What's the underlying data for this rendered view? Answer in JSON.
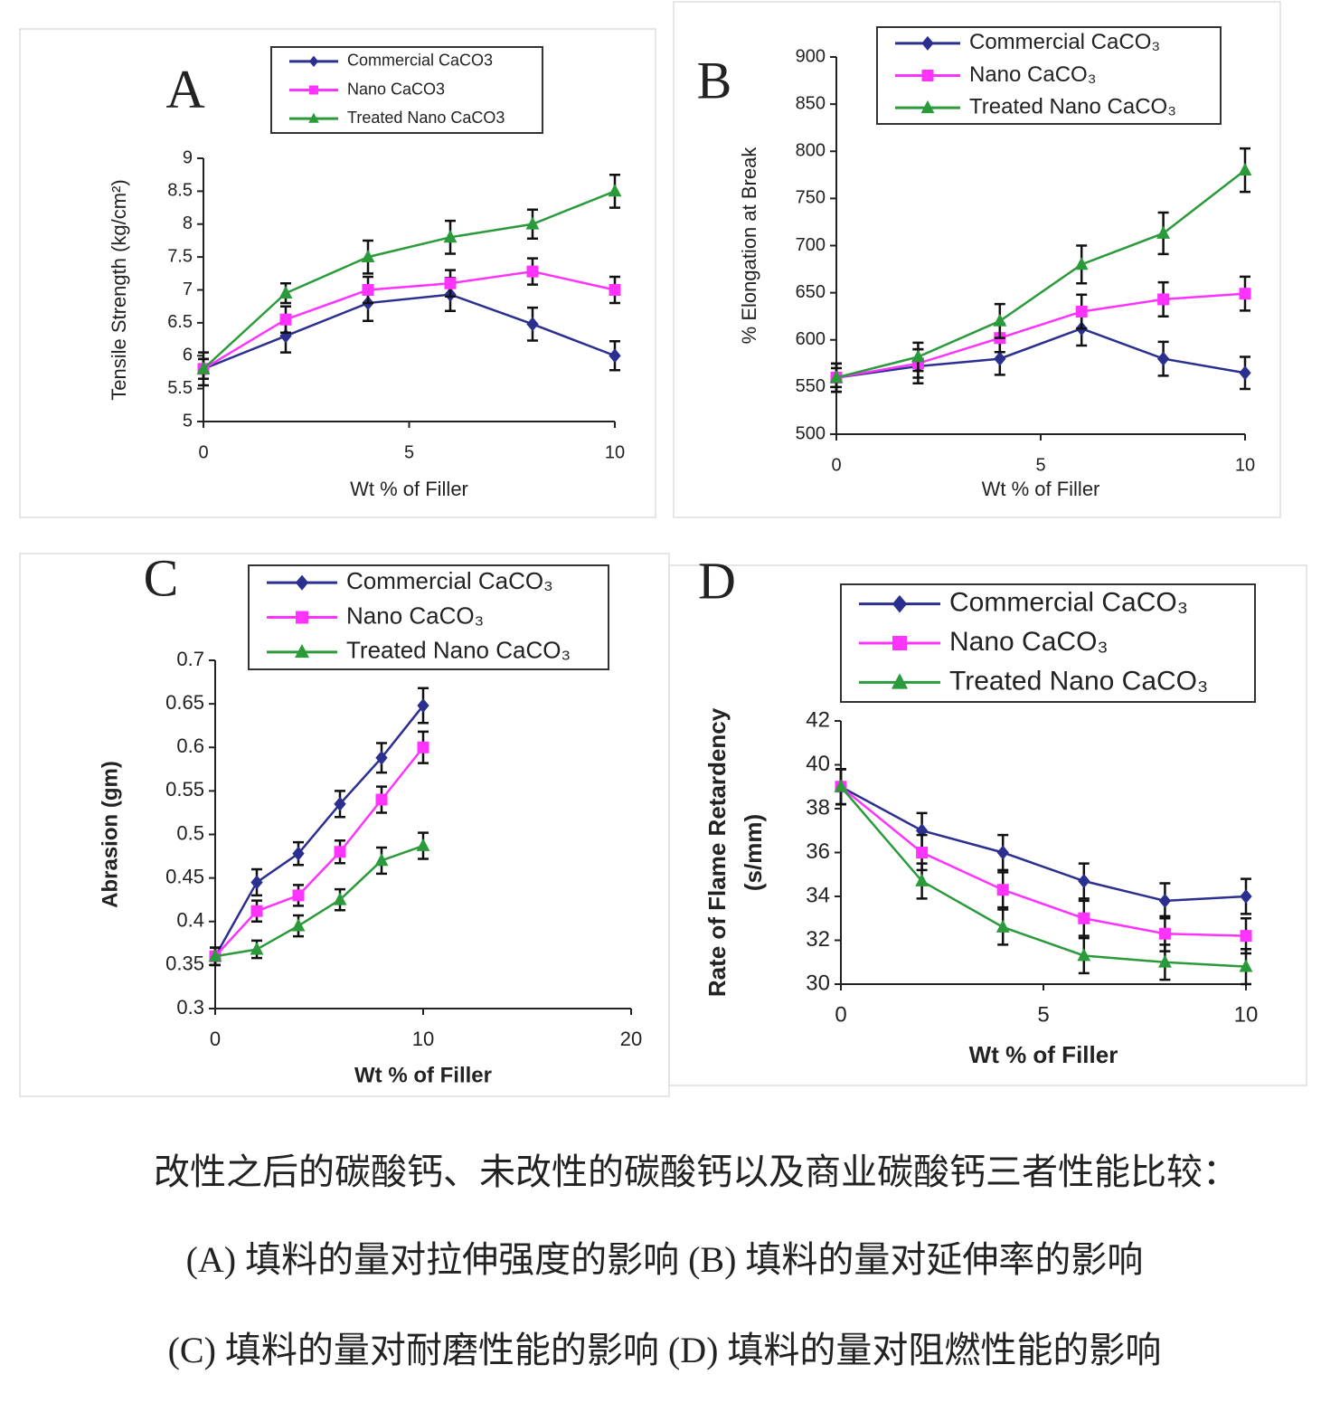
{
  "chart_data": [
    {
      "type": "line",
      "title": "A",
      "x_label": "Wt % of Filler",
      "y_label": "Tensile Strength (kg/cm²)",
      "x": [
        0,
        2,
        4,
        6,
        8,
        10
      ],
      "xlim": [
        0,
        10
      ],
      "xticks": [
        0,
        5,
        10
      ],
      "ylim": [
        5,
        9
      ],
      "yticks": [
        5,
        5.5,
        6,
        6.5,
        7,
        7.5,
        8,
        8.5,
        9
      ],
      "series": [
        {
          "name": "Commercial CaCO3",
          "color": "#2b2f8f",
          "marker": "diamond",
          "values": [
            5.8,
            6.3,
            6.8,
            6.93,
            6.48,
            6.0
          ],
          "errors": [
            0.25,
            0.25,
            0.27,
            0.25,
            0.25,
            0.22
          ]
        },
        {
          "name": "Nano CaCO3",
          "color": "#ff33ff",
          "marker": "square",
          "values": [
            5.8,
            6.55,
            7.0,
            7.1,
            7.28,
            7.0
          ],
          "errors": [
            0.15,
            0.2,
            0.2,
            0.2,
            0.2,
            0.2
          ]
        },
        {
          "name": "Treated Nano CaCO3",
          "color": "#2a9a3a",
          "marker": "triangle",
          "values": [
            5.8,
            6.95,
            7.5,
            7.8,
            8.0,
            8.5
          ],
          "errors": [
            0.15,
            0.15,
            0.25,
            0.25,
            0.22,
            0.25
          ]
        }
      ]
    },
    {
      "type": "line",
      "title": "B",
      "x_label": "Wt % of Filler",
      "y_label": "% Elongation at Break",
      "x": [
        0,
        2,
        4,
        6,
        8,
        10
      ],
      "xlim": [
        0,
        10
      ],
      "xticks": [
        0,
        5,
        10
      ],
      "ylim": [
        500,
        900
      ],
      "yticks": [
        500,
        550,
        600,
        650,
        700,
        750,
        800,
        850,
        900
      ],
      "series": [
        {
          "name": "Commercial CaCO₃",
          "color": "#2b2f8f",
          "marker": "diamond",
          "values": [
            560,
            572,
            580,
            612,
            580,
            565
          ],
          "errors": [
            15,
            18,
            17,
            18,
            18,
            17
          ]
        },
        {
          "name": "Nano CaCO₃",
          "color": "#ff33ff",
          "marker": "square",
          "values": [
            560,
            575,
            602,
            630,
            643,
            649
          ],
          "errors": [
            10,
            15,
            15,
            18,
            18,
            18
          ]
        },
        {
          "name": "Treated Nano CaCO₃",
          "color": "#2a9a3a",
          "marker": "triangle",
          "values": [
            560,
            582,
            620,
            680,
            713,
            780
          ],
          "errors": [
            15,
            15,
            18,
            20,
            22,
            23
          ]
        }
      ]
    },
    {
      "type": "line",
      "title": "C",
      "x_label": "Wt % of Filler",
      "y_label": "Abrasion (gm)",
      "x": [
        0,
        2,
        4,
        6,
        8,
        10
      ],
      "xlim": [
        0,
        20
      ],
      "xticks": [
        0,
        10,
        20
      ],
      "ylim": [
        0.3,
        0.7
      ],
      "yticks": [
        0.3,
        0.35,
        0.4,
        0.45,
        0.5,
        0.55,
        0.6,
        0.65,
        0.7
      ],
      "series": [
        {
          "name": "Commercial CaCO₃",
          "color": "#2b2f8f",
          "marker": "diamond",
          "values": [
            0.36,
            0.445,
            0.478,
            0.535,
            0.588,
            0.648
          ],
          "errors": [
            0.01,
            0.015,
            0.013,
            0.015,
            0.017,
            0.02
          ]
        },
        {
          "name": "Nano CaCO₃",
          "color": "#ff33ff",
          "marker": "square",
          "values": [
            0.36,
            0.412,
            0.43,
            0.48,
            0.54,
            0.6
          ],
          "errors": [
            0.01,
            0.012,
            0.012,
            0.013,
            0.015,
            0.018
          ]
        },
        {
          "name": "Treated Nano CaCO₃",
          "color": "#2a9a3a",
          "marker": "triangle",
          "values": [
            0.36,
            0.368,
            0.395,
            0.425,
            0.47,
            0.487
          ],
          "errors": [
            0.01,
            0.01,
            0.012,
            0.012,
            0.015,
            0.015
          ]
        }
      ]
    },
    {
      "type": "line",
      "title": "D",
      "x_label": "Wt % of Filler",
      "y_label": [
        "Rate of Flame Retardency",
        "(s/mm)"
      ],
      "x": [
        0,
        2,
        4,
        6,
        8,
        10
      ],
      "xlim": [
        0,
        10
      ],
      "xticks": [
        0,
        5,
        10
      ],
      "ylim": [
        30,
        42
      ],
      "yticks": [
        30,
        32,
        34,
        36,
        38,
        40,
        42
      ],
      "series": [
        {
          "name": "Commercial CaCO₃",
          "color": "#2b2f8f",
          "marker": "diamond",
          "values": [
            39,
            37,
            36,
            34.7,
            33.8,
            34
          ],
          "errors": [
            0.8,
            0.8,
            0.8,
            0.8,
            0.8,
            0.8
          ]
        },
        {
          "name": "Nano CaCO₃",
          "color": "#ff33ff",
          "marker": "square",
          "values": [
            39,
            36,
            34.3,
            33,
            32.3,
            32.2
          ],
          "errors": [
            0.8,
            0.8,
            0.8,
            0.8,
            0.8,
            0.8
          ]
        },
        {
          "name": "Treated Nano CaCO₃",
          "color": "#2a9a3a",
          "marker": "triangle",
          "values": [
            39,
            34.7,
            32.6,
            31.3,
            31,
            30.8
          ],
          "errors": [
            0.8,
            0.8,
            0.8,
            0.8,
            0.8,
            0.8
          ]
        }
      ]
    }
  ],
  "caption": [
    "改性之后的碳酸钙、未改性的碳酸钙以及商业碳酸钙三者性能比较：",
    "(A)  填料的量对拉伸强度的影响  (B)  填料的量对延伸率的影响",
    "(C)  填料的量对耐磨性能的影响  (D)  填料的量对阻燃性能的影响"
  ]
}
